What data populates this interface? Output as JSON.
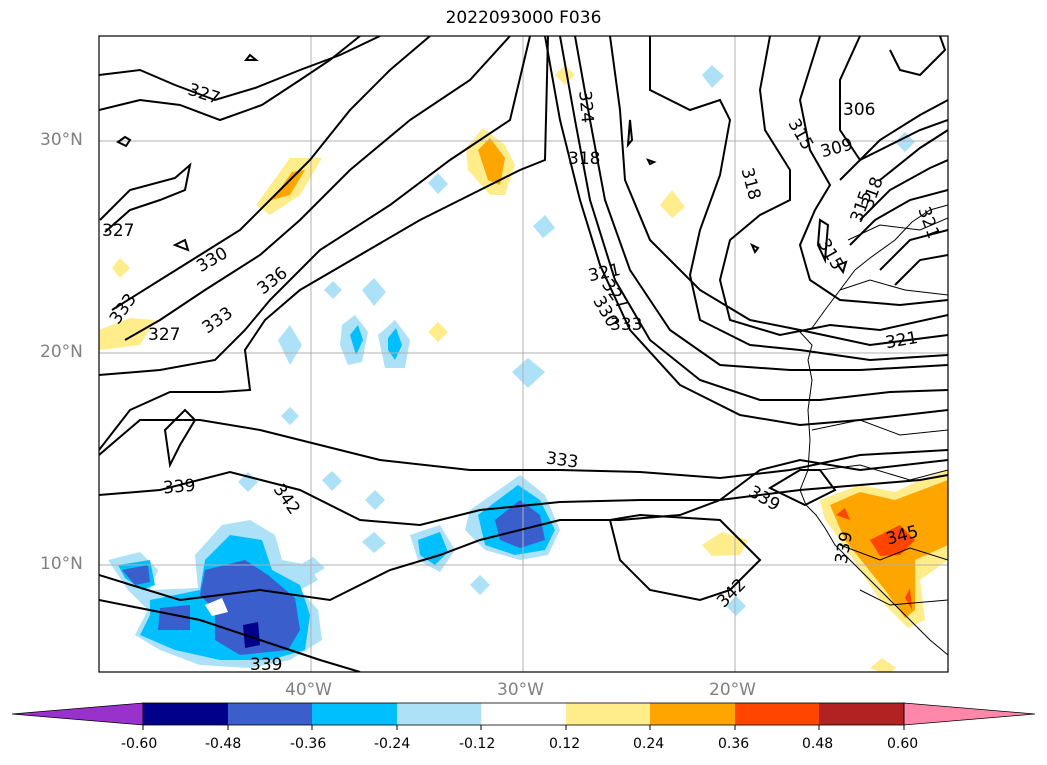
{
  "title": "2022093000 F036",
  "map": {
    "latitude_labels": [
      "30°N",
      "20°N",
      "10°N"
    ],
    "longitude_labels": [
      "40°W",
      "30°W",
      "20°W"
    ],
    "contour_labels": [
      "327",
      "327",
      "330",
      "333",
      "336",
      "333",
      "327",
      "333",
      "324",
      "318",
      "318",
      "315",
      "309",
      "306",
      "318",
      "315",
      "321",
      "315",
      "321",
      "330",
      "327",
      "321",
      "333",
      "339",
      "342",
      "339",
      "342",
      "339",
      "345",
      "339"
    ],
    "colors": {
      "contour": "#000000",
      "grid": "#b0b0b0",
      "coastline": "#000000"
    }
  },
  "colorbar": {
    "tick_labels": [
      "-0.60",
      "-0.48",
      "-0.36",
      "-0.24",
      "-0.12",
      "0.12",
      "0.24",
      "0.36",
      "0.48",
      "0.60"
    ],
    "colors": [
      "#9932CC",
      "#00008B",
      "#3A5FCD",
      "#00BFFF",
      "#ADE1F7",
      "#FFFFFF",
      "#FFEC8B",
      "#FFA500",
      "#FF4500",
      "#B22222",
      "#FF88AA"
    ]
  }
}
